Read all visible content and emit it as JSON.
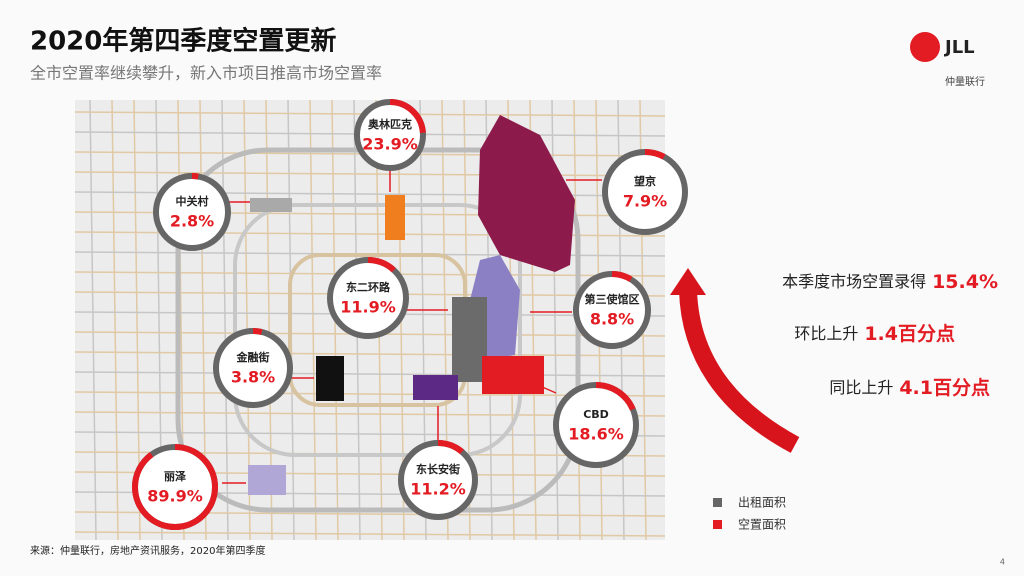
{
  "header": {
    "title": "2020年第四季度空置更新",
    "subtitle": "全市空置率继续攀升，新入市项目推高市场空置率"
  },
  "logo": {
    "brand": "JLL",
    "name": "仲量联行"
  },
  "districts": [
    {
      "name": "奥林匹克",
      "value": 23.9,
      "label": "23.9%"
    },
    {
      "name": "中关村",
      "value": 2.8,
      "label": "2.8%"
    },
    {
      "name": "望京",
      "value": 7.9,
      "label": "7.9%"
    },
    {
      "name": "东二环路",
      "value": 11.9,
      "label": "11.9%"
    },
    {
      "name": "第三使馆区",
      "value": 8.8,
      "label": "8.8%"
    },
    {
      "name": "金融街",
      "value": 3.8,
      "label": "3.8%"
    },
    {
      "name": "CBD",
      "value": 18.6,
      "label": "18.6%"
    },
    {
      "name": "东长安街",
      "value": 11.2,
      "label": "11.2%"
    },
    {
      "name": "丽泽",
      "value": 89.9,
      "label": "89.9%"
    }
  ],
  "summary": [
    {
      "text": "本季度市场空置录得",
      "value": 15.4,
      "label": "15.4%"
    },
    {
      "text": "环比上升",
      "value": 1.4,
      "label": "1.4百分点"
    },
    {
      "text": "同比上升",
      "value": 4.1,
      "label": "4.1百分点"
    }
  ],
  "legend": [
    "出租面积",
    "空置面积"
  ],
  "source": "来源：仲量联行，房地产资讯服务，2020年第四季度",
  "page_number": "4"
}
